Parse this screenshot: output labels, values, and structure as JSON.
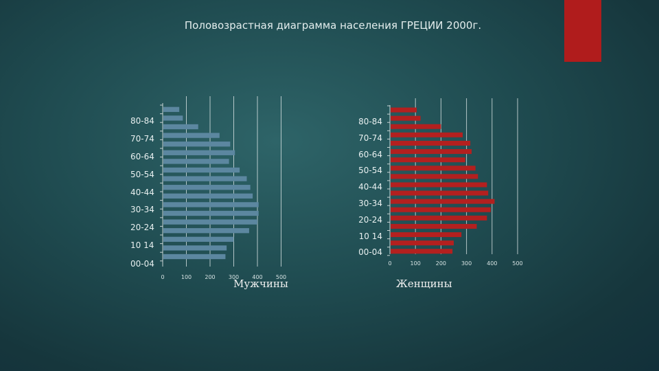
{
  "chart_data": [
    {
      "type": "bar",
      "orientation": "horizontal",
      "panel": "male",
      "caption": "Мужчины",
      "age_labels": [
        "80-84",
        "70-74",
        "60-64",
        "50-54",
        "40-44",
        "30-34",
        "20-24",
        "10 14",
        "00-04"
      ],
      "xticks": [
        "0",
        "100",
        "200",
        "300",
        "400",
        "500"
      ],
      "xlim": [
        0,
        500
      ],
      "values": [
        70,
        85,
        150,
        240,
        285,
        305,
        280,
        325,
        355,
        370,
        380,
        405,
        405,
        400,
        365,
        300,
        270,
        265
      ],
      "color": "#5c87a0"
    },
    {
      "type": "bar",
      "orientation": "horizontal",
      "panel": "female",
      "caption": "Женщины",
      "age_labels": [
        "80-84",
        "70-74",
        "60-64",
        "50-54",
        "40-44",
        "30-34",
        "20-24",
        "10 14",
        "00-04"
      ],
      "xticks": [
        "0",
        "100",
        "200",
        "300",
        "400",
        "500"
      ],
      "xlim": [
        0,
        500
      ],
      "values": [
        105,
        120,
        200,
        285,
        315,
        320,
        295,
        335,
        345,
        380,
        385,
        410,
        395,
        380,
        340,
        280,
        250,
        245
      ],
      "color": "#b3201f"
    }
  ],
  "title": "Половозрастная диаграмма населения ГРЕЦИИ 2000г.",
  "colors": {
    "accent": "#b01c1c"
  }
}
